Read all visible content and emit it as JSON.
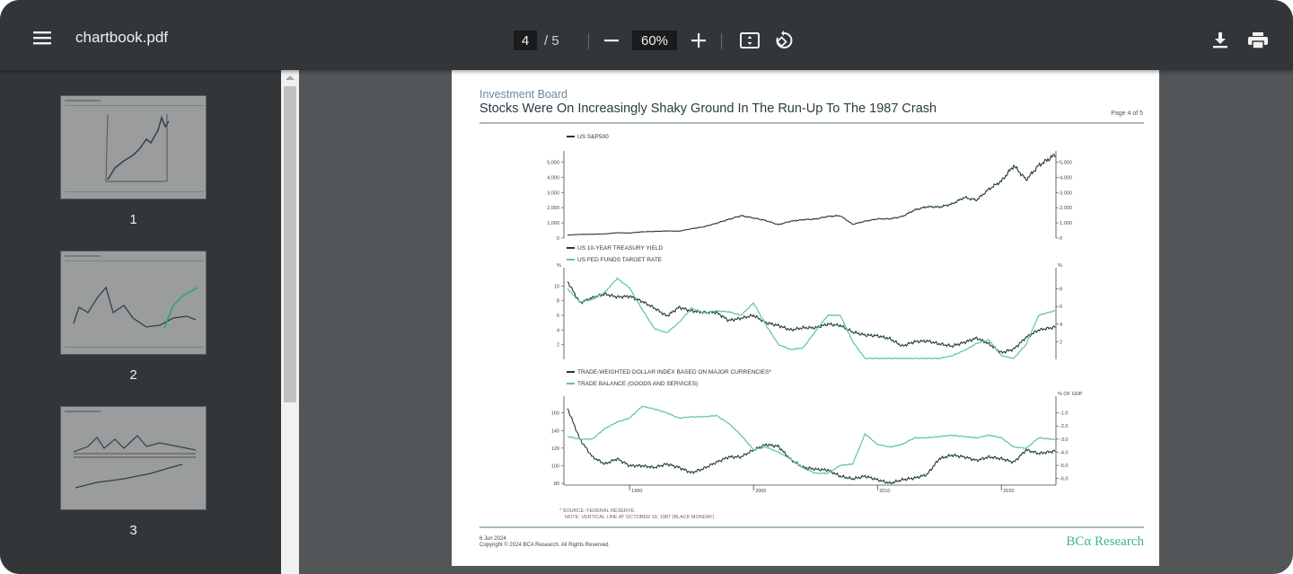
{
  "toolbar": {
    "title": "chartbook.pdf",
    "current_page": "4",
    "page_total": "/  5",
    "zoom": "60%",
    "icons": [
      "menu-icon",
      "zoom-out-icon",
      "zoom-in-icon",
      "fit-page-icon",
      "rotate-icon",
      "download-icon",
      "print-icon"
    ]
  },
  "sidebar": {
    "thumbnails": [
      {
        "label": "1"
      },
      {
        "label": "2"
      },
      {
        "label": "3"
      }
    ]
  },
  "document": {
    "section": "Investment Board",
    "title": "Stocks Were On Increasingly Shaky Ground In The Run-Up To The 1987 Crash",
    "page_label": "Page 4 of 5",
    "footnote1": "* SOURCE: FEDERAL RESERVE.",
    "footnote2": "NOTE: VERTICAL LINE AT OCTOBER 19, 1987 (BLACK MONDAY).",
    "date": "6 Jun 2024",
    "copyright": "Copyright © 2024 BCA Research. All Rights Reserved.",
    "logo": "BCα Research",
    "colors": {
      "dark": "#1f3a3a",
      "green": "#5cc4a0",
      "title": "#2a3b3f",
      "section": "#6b8a99"
    }
  },
  "chart_data": [
    {
      "type": "line",
      "legend": [
        "US S&P500"
      ],
      "ylim": [
        0,
        5500
      ],
      "yticks": [
        0,
        1000,
        2000,
        3000,
        4000,
        5000
      ],
      "yticklabels": [
        "0",
        "1,000",
        "2,000",
        "3,000",
        "4,000",
        "5,000"
      ],
      "x": [
        1985,
        1986,
        1987,
        1988,
        1989,
        1990,
        1991,
        1992,
        1993,
        1994,
        1995,
        1996,
        1997,
        1998,
        1999,
        2000,
        2001,
        2002,
        2003,
        2004,
        2005,
        2006,
        2007,
        2008,
        2009,
        2010,
        2011,
        2012,
        2013,
        2014,
        2015,
        2016,
        2017,
        2018,
        2019,
        2020,
        2021,
        2022,
        2023,
        2024
      ],
      "series": [
        {
          "name": "US S&P500",
          "axis": "left",
          "values": [
            190,
            240,
            250,
            270,
            350,
            330,
            410,
            435,
            465,
            455,
            615,
            740,
            970,
            1230,
            1470,
            1320,
            1150,
            880,
            1110,
            1210,
            1250,
            1420,
            1470,
            900,
            1110,
            1260,
            1260,
            1420,
            1850,
            2060,
            2040,
            2240,
            2670,
            2500,
            3230,
            3750,
            4770,
            3840,
            4770,
            5300
          ]
        }
      ]
    },
    {
      "type": "line",
      "legend": [
        "US 10-YEAR TREASURY YIELD",
        "US FED FUNDS TARGET RATE"
      ],
      "left_unit": "%",
      "right_unit": "%",
      "ylim": [
        0,
        12
      ],
      "yticks": [
        2,
        4,
        6,
        8,
        10
      ],
      "y2lim": [
        0,
        10
      ],
      "y2ticks": [
        2,
        4,
        6,
        8
      ],
      "x": [
        1985,
        1986,
        1987,
        1988,
        1989,
        1990,
        1991,
        1992,
        1993,
        1994,
        1995,
        1996,
        1997,
        1998,
        1999,
        2000,
        2001,
        2002,
        2003,
        2004,
        2005,
        2006,
        2007,
        2008,
        2009,
        2010,
        2011,
        2012,
        2013,
        2014,
        2015,
        2016,
        2017,
        2018,
        2019,
        2020,
        2021,
        2022,
        2023,
        2024
      ],
      "series": [
        {
          "name": "US 10-YEAR TREASURY YIELD",
          "axis": "left",
          "values": [
            10.6,
            7.7,
            8.4,
            8.9,
            8.5,
            8.6,
            7.9,
            7.0,
            5.9,
            7.1,
            6.6,
            6.4,
            6.4,
            5.3,
            5.6,
            6.0,
            5.0,
            4.6,
            4.0,
            4.3,
            4.3,
            4.8,
            4.6,
            3.7,
            3.3,
            3.2,
            2.8,
            1.8,
            2.4,
            2.5,
            2.1,
            1.8,
            2.3,
            2.9,
            2.1,
            0.9,
            1.4,
            3.0,
            4.0,
            4.3
          ]
        },
        {
          "name": "US FED FUNDS TARGET RATE",
          "axis": "right",
          "values": [
            8.0,
            6.5,
            6.8,
            7.6,
            9.2,
            8.1,
            5.7,
            3.5,
            3.0,
            4.2,
            5.8,
            5.3,
            5.5,
            5.4,
            5.0,
            6.4,
            3.9,
            1.7,
            1.1,
            1.3,
            3.2,
            5.0,
            5.0,
            2.0,
            0.1,
            0.1,
            0.1,
            0.1,
            0.1,
            0.1,
            0.1,
            0.4,
            1.0,
            1.8,
            2.2,
            0.4,
            0.1,
            1.7,
            5.0,
            5.4
          ]
        }
      ]
    },
    {
      "type": "line",
      "legend": [
        "TRADE-WEIGHTED DOLLAR INDEX BASED ON MAJOR CURRENCIES*",
        "TRADE BALANCE (GOODS AND SERVICES)"
      ],
      "right_unit": "% OF GDP",
      "ylim": [
        78,
        175
      ],
      "yticks": [
        80,
        100,
        120,
        140,
        160
      ],
      "y2lim": [
        -6.5,
        0
      ],
      "y2ticks": [
        -1,
        -2,
        -3,
        -4,
        -5,
        -6
      ],
      "y2ticklabels": [
        "-1.0",
        "-2.0",
        "-3.0",
        "-4.0",
        "-5.0",
        "-6.0"
      ],
      "xticks": [
        1990,
        2000,
        2010,
        2020
      ],
      "xticklabels": [
        "1990",
        "2000",
        "2010",
        "2020"
      ],
      "x": [
        1985,
        1986,
        1987,
        1988,
        1989,
        1990,
        1991,
        1992,
        1993,
        1994,
        1995,
        1996,
        1997,
        1998,
        1999,
        2000,
        2001,
        2002,
        2003,
        2004,
        2005,
        2006,
        2007,
        2008,
        2009,
        2010,
        2011,
        2012,
        2013,
        2014,
        2015,
        2016,
        2017,
        2018,
        2019,
        2020,
        2021,
        2022,
        2023,
        2024
      ],
      "series": [
        {
          "name": "TRADE-WEIGHTED DOLLAR INDEX",
          "axis": "left",
          "values": [
            165,
            130,
            110,
            102,
            108,
            100,
            100,
            98,
            102,
            98,
            92,
            97,
            104,
            110,
            110,
            118,
            124,
            122,
            107,
            98,
            96,
            95,
            88,
            85,
            88,
            84,
            80,
            84,
            86,
            90,
            108,
            112,
            110,
            106,
            110,
            108,
            104,
            118,
            114,
            116
          ]
        },
        {
          "name": "TRADE BALANCE",
          "axis": "right",
          "values": [
            -2.8,
            -3.0,
            -3.0,
            -2.2,
            -1.7,
            -1.4,
            -0.5,
            -0.7,
            -1.0,
            -1.4,
            -1.3,
            -1.3,
            -1.2,
            -1.8,
            -2.7,
            -3.8,
            -3.6,
            -4.0,
            -4.5,
            -5.2,
            -5.6,
            -5.6,
            -5.0,
            -4.9,
            -2.6,
            -3.4,
            -3.6,
            -3.4,
            -2.9,
            -2.9,
            -2.8,
            -2.7,
            -2.8,
            -2.9,
            -2.7,
            -2.9,
            -3.6,
            -3.7,
            -2.9,
            -3.0
          ]
        }
      ]
    }
  ]
}
